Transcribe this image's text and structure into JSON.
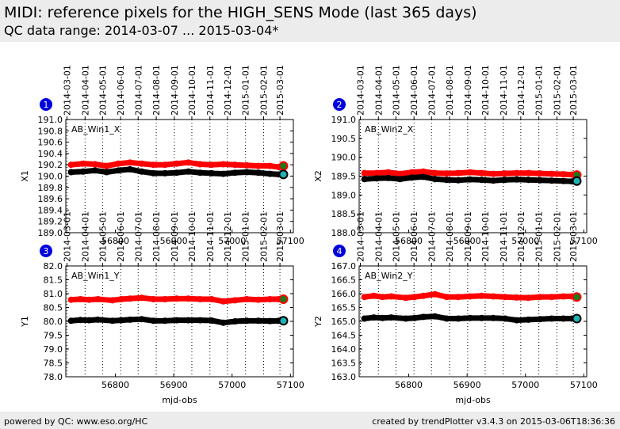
{
  "page": {
    "title": "MIDI: reference pixels for the HIGH_SENS Mode (last 365 days)",
    "subtitle": "QC data range: 2014-03-07 ... 2015-03-04*",
    "footer_left": "powered by QC: www.eso.org/HC",
    "footer_right": "created by trendPlotter v3.4.3 on 2015-03-06T18:36:36"
  },
  "colors": {
    "series_red": "#ff0000",
    "series_black": "#000000",
    "last_red_marker": "#1a7a1a",
    "last_black_marker": "#20b2b2",
    "badge": "#0000dd"
  },
  "date_ticks": [
    "2014-03-01",
    "2014-04-01",
    "2014-05-01",
    "2014-06-01",
    "2014-07-01",
    "2014-08-01",
    "2014-09-01",
    "2014-10-01",
    "2014-11-01",
    "2014-12-01",
    "2015-01-01",
    "2015-02-01",
    "2015-03-01"
  ],
  "date_tick_mjd": [
    56717,
    56748,
    56778,
    56809,
    56839,
    56870,
    56901,
    56931,
    56962,
    56992,
    57023,
    57054,
    57082
  ],
  "chart_data": [
    {
      "type": "scatter",
      "badge": "1",
      "label": "AB_Win1_X",
      "ylabel": "X1",
      "xlabel": "",
      "xlim": [
        56715,
        57105
      ],
      "ylim": [
        189.0,
        191.0
      ],
      "xticks": [
        56800,
        56900,
        57000,
        57100
      ],
      "yticks": [
        "189.0",
        "189.2",
        "189.4",
        "189.6",
        "189.8",
        "190.0",
        "190.2",
        "190.4",
        "190.6",
        "190.8",
        "191.0"
      ],
      "grid": "vertical-dotted",
      "series": [
        {
          "color": "red",
          "x": [
            56724,
            56745,
            56765,
            56785,
            56805,
            56825,
            56845,
            56865,
            56885,
            56905,
            56925,
            56945,
            56965,
            56985,
            57005,
            57025,
            57045,
            57065,
            57080
          ],
          "y": [
            190.2,
            190.22,
            190.21,
            190.18,
            190.22,
            190.24,
            190.22,
            190.2,
            190.2,
            190.22,
            190.24,
            190.21,
            190.2,
            190.21,
            190.2,
            190.19,
            190.18,
            190.18,
            190.16
          ]
        },
        {
          "color": "black",
          "x": [
            56724,
            56745,
            56765,
            56785,
            56805,
            56825,
            56845,
            56865,
            56885,
            56905,
            56925,
            56945,
            56965,
            56985,
            57005,
            57025,
            57045,
            57065,
            57080
          ],
          "y": [
            190.07,
            190.08,
            190.1,
            190.07,
            190.1,
            190.12,
            190.08,
            190.05,
            190.05,
            190.06,
            190.08,
            190.06,
            190.05,
            190.04,
            190.06,
            190.07,
            190.06,
            190.04,
            190.03
          ]
        }
      ],
      "last_points": {
        "red": [
          57088,
          190.18
        ],
        "black": [
          57088,
          190.03
        ]
      }
    },
    {
      "type": "scatter",
      "badge": "2",
      "label": "AB_Win2_X",
      "ylabel": "X2",
      "xlabel": "",
      "xlim": [
        56715,
        57105
      ],
      "ylim": [
        188.0,
        191.0
      ],
      "xticks": [
        56800,
        56900,
        57000,
        57100
      ],
      "yticks": [
        "188.0",
        "188.5",
        "189.0",
        "189.5",
        "190.0",
        "190.5",
        "191.0"
      ],
      "grid": "vertical-dotted",
      "series": [
        {
          "color": "red",
          "x": [
            56724,
            56745,
            56765,
            56785,
            56805,
            56825,
            56845,
            56865,
            56885,
            56905,
            56925,
            56945,
            56965,
            56985,
            57005,
            57025,
            57045,
            57065,
            57080
          ],
          "y": [
            189.58,
            189.58,
            189.6,
            189.56,
            189.6,
            189.62,
            189.58,
            189.57,
            189.58,
            189.6,
            189.58,
            189.56,
            189.57,
            189.58,
            189.58,
            189.57,
            189.56,
            189.55,
            189.54
          ]
        },
        {
          "color": "black",
          "x": [
            56724,
            56745,
            56765,
            56785,
            56805,
            56825,
            56845,
            56865,
            56885,
            56905,
            56925,
            56945,
            56965,
            56985,
            57005,
            57025,
            57045,
            57065,
            57080
          ],
          "y": [
            189.42,
            189.44,
            189.45,
            189.42,
            189.46,
            189.48,
            189.42,
            189.4,
            189.39,
            189.41,
            189.4,
            189.38,
            189.4,
            189.41,
            189.4,
            189.39,
            189.38,
            189.37,
            189.36
          ]
        }
      ],
      "last_points": {
        "red": [
          57088,
          189.53
        ],
        "black": [
          57088,
          189.37
        ]
      }
    },
    {
      "type": "scatter",
      "badge": "3",
      "label": "AB_Win1_Y",
      "ylabel": "Y1",
      "xlabel": "mjd-obs",
      "xlim": [
        56715,
        57105
      ],
      "ylim": [
        78.0,
        82.0
      ],
      "xticks": [
        56800,
        56900,
        57000,
        57100
      ],
      "yticks": [
        "78.0",
        "78.5",
        "79.0",
        "79.5",
        "80.0",
        "80.5",
        "81.0",
        "81.5",
        "82.0"
      ],
      "grid": "vertical-dotted",
      "series": [
        {
          "color": "red",
          "x": [
            56724,
            56740,
            56755,
            56770,
            56795,
            56810,
            56825,
            56845,
            56865,
            56885,
            56905,
            56925,
            56945,
            56965,
            56985,
            57005,
            57025,
            57045,
            57065,
            57080
          ],
          "y": [
            80.78,
            80.8,
            80.78,
            80.8,
            80.76,
            80.8,
            80.82,
            80.85,
            80.8,
            80.8,
            80.82,
            80.82,
            80.8,
            80.8,
            80.72,
            80.76,
            80.8,
            80.78,
            80.8,
            80.8
          ]
        },
        {
          "color": "black",
          "x": [
            56724,
            56740,
            56755,
            56770,
            56795,
            56810,
            56825,
            56845,
            56865,
            56885,
            56905,
            56925,
            56945,
            56965,
            56985,
            57005,
            57025,
            57045,
            57065,
            57080
          ],
          "y": [
            80.02,
            80.05,
            80.04,
            80.06,
            80.02,
            80.04,
            80.06,
            80.08,
            80.02,
            80.02,
            80.04,
            80.04,
            80.04,
            80.03,
            79.95,
            80.0,
            80.02,
            80.02,
            80.01,
            80.02
          ]
        }
      ],
      "last_points": {
        "red": [
          57088,
          80.8
        ],
        "black": [
          57088,
          80.02
        ]
      }
    },
    {
      "type": "scatter",
      "badge": "4",
      "label": "AB_Win2_Y",
      "ylabel": "Y2",
      "xlabel": "mjd-obs",
      "xlim": [
        56715,
        57105
      ],
      "ylim": [
        163.0,
        167.0
      ],
      "xticks": [
        56800,
        56900,
        57000,
        57100
      ],
      "yticks": [
        "163.0",
        "163.5",
        "164.0",
        "164.5",
        "165.0",
        "165.5",
        "166.0",
        "166.5",
        "167.0"
      ],
      "grid": "vertical-dotted",
      "series": [
        {
          "color": "red",
          "x": [
            56724,
            56740,
            56755,
            56770,
            56795,
            56810,
            56825,
            56845,
            56865,
            56885,
            56905,
            56925,
            56945,
            56965,
            56985,
            57005,
            57025,
            57045,
            57065,
            57080
          ],
          "y": [
            165.88,
            165.92,
            165.88,
            165.9,
            165.85,
            165.88,
            165.92,
            165.98,
            165.88,
            165.88,
            165.9,
            165.92,
            165.9,
            165.88,
            165.86,
            165.85,
            165.88,
            165.88,
            165.9,
            165.9
          ]
        },
        {
          "color": "black",
          "x": [
            56724,
            56740,
            56755,
            56770,
            56795,
            56810,
            56825,
            56845,
            56865,
            56885,
            56905,
            56925,
            56945,
            56965,
            56985,
            57005,
            57025,
            57045,
            57065,
            57080
          ],
          "y": [
            165.1,
            165.14,
            165.12,
            165.14,
            165.1,
            165.12,
            165.16,
            165.18,
            165.1,
            165.1,
            165.12,
            165.12,
            165.12,
            165.1,
            165.04,
            165.06,
            165.08,
            165.1,
            165.1,
            165.1
          ]
        }
      ],
      "last_points": {
        "red": [
          57088,
          165.88
        ],
        "black": [
          57088,
          165.1
        ]
      }
    }
  ]
}
